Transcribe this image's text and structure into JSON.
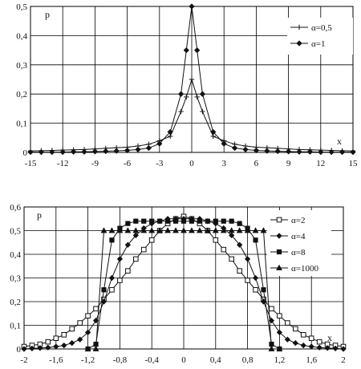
{
  "chart_data": [
    {
      "type": "line",
      "ylabel": "p",
      "xlabel": "x",
      "xlim": [
        -15,
        15
      ],
      "ylim": [
        0,
        0.5
      ],
      "xticks": [
        "-15",
        "-12",
        "-9",
        "-6",
        "-3",
        "0",
        "3",
        "6",
        "9",
        "12",
        "15"
      ],
      "yticks": [
        "0",
        "0,1",
        "0,2",
        "0,3",
        "0,4",
        "0,5"
      ],
      "grid": true,
      "legend_position": "top-right",
      "series": [
        {
          "name": "α=0,5",
          "marker": "plus",
          "x": [
            -15,
            -14,
            -13,
            -12,
            -11,
            -10,
            -9,
            -8,
            -7,
            -6,
            -5,
            -4,
            -3,
            -2,
            -1,
            -0.5,
            0,
            0.5,
            1,
            2,
            3,
            4,
            5,
            6,
            7,
            8,
            9,
            10,
            11,
            12,
            13,
            14,
            15
          ],
          "y": [
            0.005,
            0.006,
            0.007,
            0.008,
            0.009,
            0.01,
            0.012,
            0.014,
            0.016,
            0.018,
            0.022,
            0.028,
            0.04,
            0.055,
            0.14,
            0.19,
            0.25,
            0.19,
            0.14,
            0.055,
            0.04,
            0.028,
            0.022,
            0.018,
            0.016,
            0.014,
            0.012,
            0.01,
            0.009,
            0.008,
            0.007,
            0.006,
            0.005
          ]
        },
        {
          "name": "α=1",
          "marker": "diamond",
          "x": [
            -15,
            -14,
            -13,
            -12,
            -11,
            -10,
            -9,
            -8,
            -7,
            -6,
            -5,
            -4,
            -3,
            -2,
            -1,
            -0.5,
            0,
            0.5,
            1,
            2,
            3,
            4,
            5,
            6,
            7,
            8,
            9,
            10,
            11,
            12,
            13,
            14,
            15
          ],
          "y": [
            0.001,
            0.001,
            0.001,
            0.001,
            0.002,
            0.002,
            0.003,
            0.004,
            0.005,
            0.007,
            0.01,
            0.015,
            0.03,
            0.07,
            0.2,
            0.35,
            0.5,
            0.35,
            0.2,
            0.07,
            0.03,
            0.015,
            0.01,
            0.007,
            0.005,
            0.004,
            0.003,
            0.002,
            0.002,
            0.001,
            0.001,
            0.001,
            0.001
          ]
        }
      ]
    },
    {
      "type": "line",
      "ylabel": "p",
      "xlabel": "x",
      "xlim": [
        -2,
        2
      ],
      "ylim": [
        0,
        0.6
      ],
      "xticks": [
        "-2",
        "-1,6",
        "-1,2",
        "-0,8",
        "-0,4",
        "0",
        "0,4",
        "0,8",
        "1,2",
        "1,6",
        "2"
      ],
      "yticks": [
        "0",
        "0,1",
        "0,2",
        "0,3",
        "0,4",
        "0,5",
        "0,6"
      ],
      "grid": true,
      "legend_position": "top-right",
      "series": [
        {
          "name": "α=2",
          "marker": "open-square",
          "x": [
            -2,
            -1.9,
            -1.8,
            -1.7,
            -1.6,
            -1.5,
            -1.4,
            -1.3,
            -1.2,
            -1.1,
            -1,
            -0.9,
            -0.8,
            -0.7,
            -0.6,
            -0.5,
            -0.4,
            -0.3,
            -0.2,
            -0.1,
            0,
            0.1,
            0.2,
            0.3,
            0.4,
            0.5,
            0.6,
            0.7,
            0.8,
            0.9,
            1,
            1.1,
            1.2,
            1.3,
            1.4,
            1.5,
            1.6,
            1.7,
            1.8,
            1.9,
            2
          ],
          "y": [
            0.01,
            0.015,
            0.02,
            0.03,
            0.045,
            0.06,
            0.085,
            0.11,
            0.14,
            0.17,
            0.21,
            0.25,
            0.29,
            0.33,
            0.38,
            0.42,
            0.46,
            0.5,
            0.53,
            0.55,
            0.56,
            0.55,
            0.53,
            0.5,
            0.46,
            0.42,
            0.38,
            0.33,
            0.29,
            0.25,
            0.21,
            0.17,
            0.14,
            0.11,
            0.085,
            0.06,
            0.045,
            0.03,
            0.02,
            0.015,
            0.01
          ]
        },
        {
          "name": "α=4",
          "marker": "diamond",
          "x": [
            -2,
            -1.9,
            -1.8,
            -1.7,
            -1.6,
            -1.5,
            -1.4,
            -1.3,
            -1.2,
            -1.1,
            -1,
            -0.9,
            -0.8,
            -0.7,
            -0.6,
            -0.5,
            -0.4,
            -0.3,
            -0.2,
            -0.1,
            0,
            0.1,
            0.2,
            0.3,
            0.4,
            0.5,
            0.6,
            0.7,
            0.8,
            0.9,
            1,
            1.1,
            1.2,
            1.3,
            1.4,
            1.5,
            1.6,
            1.7,
            1.8,
            1.9,
            2
          ],
          "y": [
            0,
            0.002,
            0.004,
            0.006,
            0.01,
            0.015,
            0.025,
            0.04,
            0.07,
            0.12,
            0.2,
            0.3,
            0.38,
            0.44,
            0.48,
            0.51,
            0.53,
            0.54,
            0.55,
            0.55,
            0.55,
            0.55,
            0.55,
            0.54,
            0.53,
            0.51,
            0.48,
            0.44,
            0.38,
            0.3,
            0.2,
            0.12,
            0.07,
            0.04,
            0.025,
            0.015,
            0.01,
            0.006,
            0.004,
            0.002,
            0
          ]
        },
        {
          "name": "α=8",
          "marker": "filled-square",
          "x": [
            -1.2,
            -1.1,
            -1,
            -0.9,
            -0.8,
            -0.7,
            -0.6,
            -0.5,
            -0.4,
            -0.3,
            -0.2,
            -0.1,
            0,
            0.1,
            0.2,
            0.3,
            0.4,
            0.5,
            0.6,
            0.7,
            0.8,
            0.9,
            1,
            1.1,
            1.2
          ],
          "y": [
            0,
            0.02,
            0.25,
            0.46,
            0.51,
            0.53,
            0.54,
            0.54,
            0.54,
            0.54,
            0.54,
            0.54,
            0.54,
            0.54,
            0.54,
            0.54,
            0.54,
            0.54,
            0.54,
            0.53,
            0.51,
            0.46,
            0.25,
            0.02,
            0
          ]
        },
        {
          "name": "α=1000",
          "marker": "triangle",
          "x": [
            -1.2,
            -1.1,
            -1,
            -0.9,
            -0.8,
            -0.7,
            -0.6,
            -0.5,
            -0.4,
            -0.3,
            -0.2,
            -0.1,
            0,
            0.1,
            0.2,
            0.3,
            0.4,
            0.5,
            0.6,
            0.7,
            0.8,
            0.9,
            1,
            1.1,
            1.2
          ],
          "y": [
            0,
            0,
            0.5,
            0.5,
            0.5,
            0.5,
            0.5,
            0.5,
            0.5,
            0.5,
            0.5,
            0.5,
            0.5,
            0.5,
            0.5,
            0.5,
            0.5,
            0.5,
            0.5,
            0.5,
            0.5,
            0.5,
            0.5,
            0,
            0
          ]
        }
      ]
    }
  ]
}
